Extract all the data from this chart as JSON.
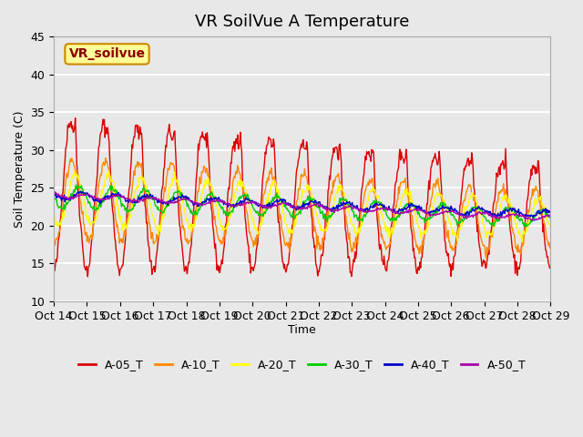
{
  "title": "VR SoilVue A Temperature",
  "ylabel": "Soil Temperature (C)",
  "xlabel": "Time",
  "annotation": "VR_soilvue",
  "ylim": [
    10,
    45
  ],
  "xtick_labels": [
    "Oct 14",
    "Oct 15",
    "Oct 16",
    "Oct 17",
    "Oct 18",
    "Oct 19",
    "Oct 20",
    "Oct 21",
    "Oct 22",
    "Oct 23",
    "Oct 24",
    "Oct 25",
    "Oct 26",
    "Oct 27",
    "Oct 28",
    "Oct 29"
  ],
  "series_colors": {
    "A-05_T": "#dd0000",
    "A-10_T": "#ff8800",
    "A-20_T": "#ffff00",
    "A-30_T": "#00cc00",
    "A-40_T": "#0000cc",
    "A-50_T": "#aa00aa"
  },
  "background_color": "#e8e8e8",
  "plot_bg_color": "#e8e8e8",
  "title_fontsize": 13,
  "grid_color": "#ffffff",
  "annotation_bg": "#ffff99",
  "annotation_border": "#cc8800"
}
